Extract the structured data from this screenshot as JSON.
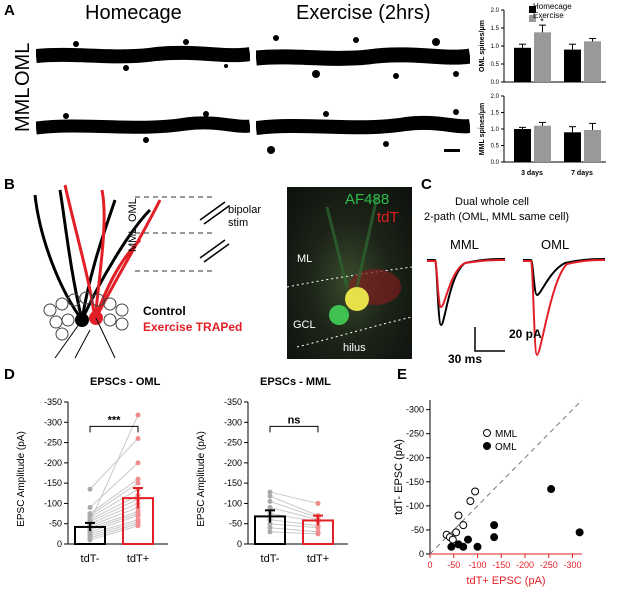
{
  "panels": {
    "A": {
      "label": "A",
      "col_titles": [
        "Homecage",
        "Exercise (2hrs)"
      ],
      "row_labels": [
        "OML",
        "MML"
      ],
      "legend": [
        "Homecage",
        "Exercise"
      ],
      "ylabels": [
        "OML spines/μm",
        "MML spines/μm"
      ],
      "xticks": [
        "3 days",
        "7 days"
      ],
      "yticks": [
        "0.0",
        "0.5",
        "1.0",
        "1.5",
        "2.0"
      ],
      "star": "*",
      "colors": {
        "homecage": "#000000",
        "exercise": "#999999"
      }
    },
    "B": {
      "label": "B",
      "oml": "OML",
      "mml": "MML",
      "stim": "bipolar\nstim",
      "control": "Control",
      "traped": "Exercise TRAPed",
      "image_labels": {
        "af488": "AF488",
        "tdt": "tdT",
        "ml": "ML",
        "gcl": "GCL",
        "hilus": "hilus"
      },
      "colors": {
        "red": "#e21f26",
        "green": "#1fa84a"
      }
    },
    "C": {
      "label": "C",
      "title_line1": "Dual whole cell",
      "title_line2": "2-path (OML, MML same cell)",
      "trace_labels": [
        "MML",
        "OML"
      ],
      "scale_y": "20 pA",
      "scale_x": "30 ms"
    },
    "D": {
      "label": "D",
      "ylabel": "EPSC Amplitude (pA)",
      "yticks": [
        "-350",
        "-300",
        "-250",
        "-200",
        "-150",
        "-100",
        "-50",
        "0"
      ],
      "xticks": [
        "tdT-",
        "tdT+"
      ]
    },
    "E": {
      "label": "E",
      "xlabel": "tdT+ EPSC (pA)",
      "ylabel": "tdT- EPSC (pA)",
      "xticks": [
        "0",
        "-50",
        "-100",
        "-150",
        "-200",
        "-250",
        "-300"
      ],
      "yticks": [
        "-300",
        "-250",
        "-200",
        "-150",
        "-100",
        "-50",
        "0"
      ],
      "legend": [
        "MML",
        "OML"
      ]
    }
  },
  "chart_data": [
    {
      "type": "bar",
      "title": "",
      "ylabel": "OML spines/μm",
      "categories": [
        "3 days",
        "7 days"
      ],
      "ylim": [
        0,
        2.0
      ],
      "series": [
        {
          "name": "Homecage",
          "values": [
            0.95,
            0.9
          ],
          "errors": [
            0.1,
            0.15
          ]
        },
        {
          "name": "Exercise",
          "values": [
            1.38,
            1.13
          ],
          "errors": [
            0.2,
            0.08
          ]
        }
      ],
      "annotations": [
        "*"
      ]
    },
    {
      "type": "bar",
      "title": "",
      "ylabel": "MML spines/μm",
      "categories": [
        "3 days",
        "7 days"
      ],
      "ylim": [
        0,
        2.0
      ],
      "series": [
        {
          "name": "Homecage",
          "values": [
            1.0,
            0.9
          ],
          "errors": [
            0.05,
            0.17
          ]
        },
        {
          "name": "Exercise",
          "values": [
            1.1,
            0.97
          ],
          "errors": [
            0.1,
            0.2
          ]
        }
      ]
    },
    {
      "type": "bar",
      "title": "EPSCs - OML",
      "ylabel": "EPSC Amplitude (pA)",
      "categories": [
        "tdT-",
        "tdT+"
      ],
      "ylim": [
        0,
        -350
      ],
      "values": [
        -42,
        -113
      ],
      "errors": [
        10,
        25
      ],
      "significance": "***",
      "pairs": [
        [
          -10,
          -45
        ],
        [
          -15,
          -50
        ],
        [
          -20,
          -55
        ],
        [
          -25,
          -60
        ],
        [
          -30,
          -70
        ],
        [
          -35,
          -75
        ],
        [
          -40,
          -80
        ],
        [
          -45,
          -90
        ],
        [
          -50,
          -100
        ],
        [
          -55,
          -110
        ],
        [
          -60,
          -120
        ],
        [
          -65,
          -135
        ],
        [
          -70,
          -150
        ],
        [
          -75,
          -160
        ],
        [
          -90,
          -200
        ],
        [
          -135,
          -260
        ],
        [
          -55,
          -318
        ]
      ]
    },
    {
      "type": "bar",
      "title": "EPSCs - MML",
      "ylabel": "EPSC Amplitude (pA)",
      "categories": [
        "tdT-",
        "tdT+"
      ],
      "ylim": [
        0,
        -350
      ],
      "values": [
        -68,
        -58
      ],
      "errors": [
        15,
        12
      ],
      "significance": "ns",
      "pairs": [
        [
          -30,
          -25
        ],
        [
          -40,
          -30
        ],
        [
          -50,
          -40
        ],
        [
          -60,
          -45
        ],
        [
          -75,
          -55
        ],
        [
          -90,
          -60
        ],
        [
          -105,
          -65
        ],
        [
          -118,
          -70
        ],
        [
          -128,
          -100
        ]
      ]
    },
    {
      "type": "scatter",
      "title": "",
      "xlabel": "tdT+ EPSC (pA)",
      "ylabel": "tdT- EPSC (pA)",
      "xlim": [
        0,
        -320
      ],
      "ylim": [
        0,
        -320
      ],
      "series": [
        {
          "name": "MML",
          "points": [
            [
              -35,
              -40
            ],
            [
              -42,
              -35
            ],
            [
              -48,
              -30
            ],
            [
              -55,
              -45
            ],
            [
              -60,
              -80
            ],
            [
              -70,
              -60
            ],
            [
              -85,
              -110
            ],
            [
              -95,
              -130
            ]
          ]
        },
        {
          "name": "OML",
          "points": [
            [
              -45,
              -15
            ],
            [
              -60,
              -20
            ],
            [
              -70,
              -15
            ],
            [
              -80,
              -30
            ],
            [
              -100,
              -15
            ],
            [
              -135,
              -60
            ],
            [
              -135,
              -35
            ],
            [
              -255,
              -135
            ],
            [
              -315,
              -45
            ]
          ]
        }
      ]
    }
  ]
}
